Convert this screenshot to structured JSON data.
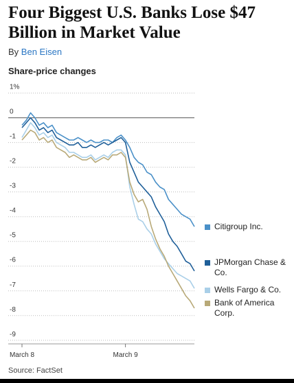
{
  "header": {
    "title": "Four Biggest U.S. Banks Lose $47 Billion in Market Value",
    "byline_prefix": "By",
    "author": "Ben Eisen"
  },
  "chart_data": {
    "type": "line",
    "subtitle": "Share-price changes",
    "source": "Source: FactSet",
    "x": [
      0,
      1,
      2,
      3,
      4,
      5,
      6,
      7,
      8,
      9,
      10,
      11,
      12,
      13,
      14,
      15,
      16,
      17,
      18,
      19,
      20,
      21,
      22,
      23,
      24,
      25,
      26,
      27,
      28,
      29,
      30,
      31,
      32,
      33,
      34,
      35,
      36,
      37,
      38,
      39,
      40
    ],
    "xlim": [
      0,
      40
    ],
    "xticks": [
      {
        "value": 0,
        "label": "March 8"
      },
      {
        "value": 24,
        "label": "March 9"
      }
    ],
    "ylim": [
      -9.2,
      1.1
    ],
    "yticks": [
      {
        "value": 1,
        "label": "1%"
      },
      0,
      -1,
      -2,
      -3,
      -4,
      -5,
      -6,
      -7,
      -8,
      -9
    ],
    "grid": true,
    "series": [
      {
        "name": "Citigroup Inc.",
        "color": "#4a90c8",
        "values": [
          -0.3,
          -0.1,
          0.2,
          0.0,
          -0.3,
          -0.2,
          -0.4,
          -0.3,
          -0.6,
          -0.7,
          -0.8,
          -0.9,
          -0.9,
          -0.8,
          -0.9,
          -1.0,
          -0.9,
          -1.0,
          -1.0,
          -0.9,
          -0.9,
          -1.0,
          -0.8,
          -0.7,
          -0.9,
          -1.2,
          -1.6,
          -1.8,
          -1.9,
          -2.2,
          -2.3,
          -2.6,
          -2.8,
          -2.9,
          -3.3,
          -3.5,
          -3.7,
          -3.9,
          -4.0,
          -4.1,
          -4.4
        ]
      },
      {
        "name": "JPMorgan Chase & Co.",
        "color": "#1f5f99",
        "values": [
          -0.4,
          -0.2,
          0.0,
          -0.2,
          -0.5,
          -0.4,
          -0.6,
          -0.5,
          -0.8,
          -0.9,
          -1.0,
          -1.1,
          -1.1,
          -1.0,
          -1.2,
          -1.2,
          -1.1,
          -1.2,
          -1.1,
          -1.0,
          -1.1,
          -1.0,
          -0.9,
          -0.8,
          -1.0,
          -1.8,
          -2.2,
          -2.6,
          -2.8,
          -3.0,
          -3.2,
          -3.6,
          -3.9,
          -4.2,
          -4.7,
          -5.0,
          -5.2,
          -5.5,
          -5.8,
          -5.9,
          -6.2
        ]
      },
      {
        "name": "Wells Fargo & Co.",
        "color": "#a9cfe8",
        "values": [
          -0.8,
          -0.5,
          -0.2,
          -0.4,
          -0.7,
          -0.6,
          -0.8,
          -0.7,
          -1.0,
          -1.1,
          -1.2,
          -1.4,
          -1.4,
          -1.5,
          -1.6,
          -1.6,
          -1.5,
          -1.7,
          -1.6,
          -1.5,
          -1.6,
          -1.4,
          -1.3,
          -1.3,
          -1.5,
          -2.8,
          -3.5,
          -4.1,
          -4.2,
          -4.5,
          -4.7,
          -5.1,
          -5.4,
          -5.7,
          -5.9,
          -6.1,
          -6.3,
          -6.4,
          -6.5,
          -6.6,
          -6.9
        ]
      },
      {
        "name": "Bank of America Corp.",
        "color": "#b8a978",
        "values": [
          -0.9,
          -0.7,
          -0.5,
          -0.6,
          -0.9,
          -0.8,
          -1.0,
          -0.9,
          -1.2,
          -1.3,
          -1.4,
          -1.6,
          -1.5,
          -1.6,
          -1.7,
          -1.7,
          -1.6,
          -1.8,
          -1.7,
          -1.6,
          -1.7,
          -1.5,
          -1.5,
          -1.4,
          -1.6,
          -2.6,
          -3.1,
          -3.4,
          -3.3,
          -3.7,
          -4.4,
          -4.9,
          -5.3,
          -5.6,
          -6.0,
          -6.3,
          -6.6,
          -6.9,
          -7.2,
          -7.4,
          -7.7
        ]
      }
    ]
  }
}
